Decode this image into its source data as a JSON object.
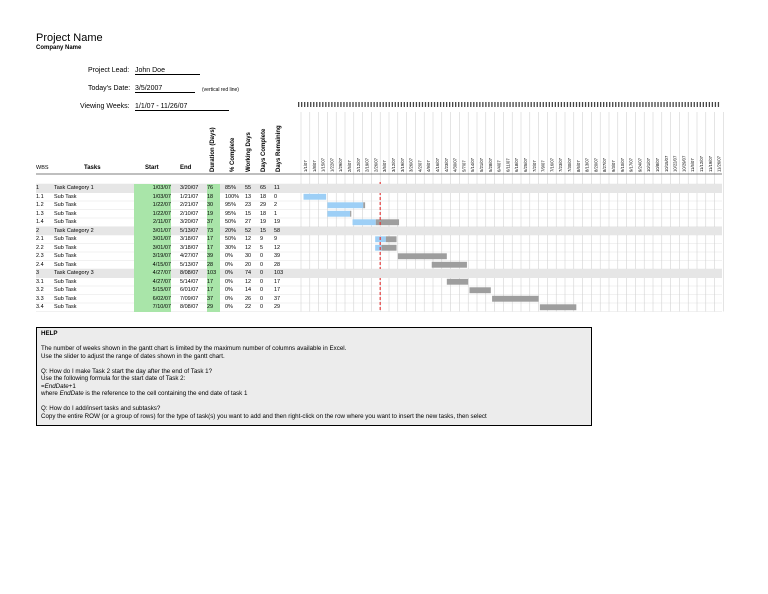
{
  "title": "Project Name",
  "company": "Company Name",
  "fields": {
    "lead_label": "Project Lead:",
    "lead_value": "John Doe",
    "today_label": "Today's Date:",
    "today_value": "3/5/2007",
    "today_note": "(vertical red line)",
    "weeks_label": "Viewing Weeks:",
    "weeks_value": "1/1/07 - 11/26/07"
  },
  "columns": {
    "wbs": "WBS",
    "tasks": "Tasks",
    "start": "Start",
    "end": "End",
    "duration": "Duration (Days)",
    "pct": "% Complete",
    "working": "Working Days",
    "days_complete": "Days Complete",
    "days_remaining": "Days Remaining"
  },
  "week_dates": [
    "1/1/07",
    "1/8/07",
    "1/15/07",
    "1/22/07",
    "1/29/07",
    "2/5/07",
    "2/12/07",
    "2/19/07",
    "2/26/07",
    "3/5/07",
    "3/12/07",
    "3/19/07",
    "3/26/07",
    "4/2/07",
    "4/9/07",
    "4/16/07",
    "4/23/07",
    "4/30/07",
    "5/7/07",
    "5/14/07",
    "5/21/07",
    "5/28/07",
    "6/4/07",
    "6/11/07",
    "6/18/07",
    "6/25/07",
    "7/2/07",
    "7/9/07",
    "7/16/07",
    "7/23/07",
    "7/30/07",
    "8/6/07",
    "8/13/07",
    "8/20/07",
    "8/27/07",
    "9/3/07",
    "9/10/07",
    "9/17/07",
    "9/24/07",
    "10/1/07",
    "10/8/07",
    "10/15/07",
    "10/22/07",
    "10/29/07",
    "11/5/07",
    "11/12/07",
    "11/19/07",
    "11/26/07"
  ],
  "rows": [
    {
      "wbs": "1",
      "task": "Task Category 1",
      "start": "1/03/07",
      "end": "3/20/07",
      "dur": "76",
      "pct": "85%",
      "wd": "55",
      "dc": "65",
      "dr": "11",
      "cat": true,
      "s": 2,
      "e": 78,
      "p": 0.85
    },
    {
      "wbs": "1.1",
      "task": "Sub Task",
      "start": "1/03/07",
      "end": "1/21/07",
      "dur": "18",
      "pct": "100%",
      "wd": "13",
      "dc": "18",
      "dr": "0",
      "cat": false,
      "s": 2,
      "e": 20,
      "p": 1.0
    },
    {
      "wbs": "1.2",
      "task": "Sub Task",
      "start": "1/22/07",
      "end": "2/21/07",
      "dur": "30",
      "pct": "95%",
      "wd": "23",
      "dc": "29",
      "dr": "2",
      "cat": false,
      "s": 21,
      "e": 51,
      "p": 0.95
    },
    {
      "wbs": "1.3",
      "task": "Sub Task",
      "start": "1/22/07",
      "end": "2/10/07",
      "dur": "19",
      "pct": "95%",
      "wd": "15",
      "dc": "18",
      "dr": "1",
      "cat": false,
      "s": 21,
      "e": 40,
      "p": 0.95
    },
    {
      "wbs": "1.4",
      "task": "Sub Task",
      "start": "2/11/07",
      "end": "3/20/07",
      "dur": "37",
      "pct": "50%",
      "wd": "27",
      "dc": "19",
      "dr": "19",
      "cat": false,
      "s": 41,
      "e": 78,
      "p": 0.5
    },
    {
      "wbs": "2",
      "task": "Task Category 2",
      "start": "3/01/07",
      "end": "5/13/07",
      "dur": "73",
      "pct": "20%",
      "wd": "52",
      "dc": "15",
      "dr": "58",
      "cat": true,
      "s": 59,
      "e": 132,
      "p": 0.2
    },
    {
      "wbs": "2.1",
      "task": "Sub Task",
      "start": "3/01/07",
      "end": "3/18/07",
      "dur": "17",
      "pct": "50%",
      "wd": "12",
      "dc": "9",
      "dr": "9",
      "cat": false,
      "s": 59,
      "e": 76,
      "p": 0.5
    },
    {
      "wbs": "2.2",
      "task": "Sub Task",
      "start": "3/01/07",
      "end": "3/18/07",
      "dur": "17",
      "pct": "30%",
      "wd": "12",
      "dc": "5",
      "dr": "12",
      "cat": false,
      "s": 59,
      "e": 76,
      "p": 0.3
    },
    {
      "wbs": "2.3",
      "task": "Sub Task",
      "start": "3/19/07",
      "end": "4/27/07",
      "dur": "39",
      "pct": "0%",
      "wd": "30",
      "dc": "0",
      "dr": "39",
      "cat": false,
      "s": 77,
      "e": 116,
      "p": 0
    },
    {
      "wbs": "2.4",
      "task": "Sub Task",
      "start": "4/15/07",
      "end": "5/13/07",
      "dur": "28",
      "pct": "0%",
      "wd": "20",
      "dc": "0",
      "dr": "28",
      "cat": false,
      "s": 104,
      "e": 132,
      "p": 0
    },
    {
      "wbs": "3",
      "task": "Task Category 3",
      "start": "4/27/07",
      "end": "8/08/07",
      "dur": "103",
      "pct": "0%",
      "wd": "74",
      "dc": "0",
      "dr": "103",
      "cat": true,
      "s": 116,
      "e": 219,
      "p": 0
    },
    {
      "wbs": "3.1",
      "task": "Sub Task",
      "start": "4/27/07",
      "end": "5/14/07",
      "dur": "17",
      "pct": "0%",
      "wd": "12",
      "dc": "0",
      "dr": "17",
      "cat": false,
      "s": 116,
      "e": 133,
      "p": 0
    },
    {
      "wbs": "3.2",
      "task": "Sub Task",
      "start": "5/15/07",
      "end": "6/01/07",
      "dur": "17",
      "pct": "0%",
      "wd": "14",
      "dc": "0",
      "dr": "17",
      "cat": false,
      "s": 134,
      "e": 151,
      "p": 0
    },
    {
      "wbs": "3.3",
      "task": "Sub Task",
      "start": "6/02/07",
      "end": "7/09/07",
      "dur": "37",
      "pct": "0%",
      "wd": "26",
      "dc": "0",
      "dr": "37",
      "cat": false,
      "s": 152,
      "e": 189,
      "p": 0
    },
    {
      "wbs": "3.4",
      "task": "Sub Task",
      "start": "7/10/07",
      "end": "8/08/07",
      "dur": "29",
      "pct": "0%",
      "wd": "22",
      "dc": "0",
      "dr": "29",
      "cat": false,
      "s": 190,
      "e": 219,
      "p": 0
    }
  ],
  "today_day": 63,
  "colors": {
    "done": "#6f9cee",
    "done_light": "#9dcff6",
    "remaining": "#7a7a7a",
    "remaining_light": "#9e9e9e",
    "today": "#e23b3b",
    "start_fill": "#a9e5a9",
    "cat_row": "#e6e6e6"
  },
  "help": {
    "title": "HELP",
    "lines": [
      "The number of weeks shown in the gantt chart is limited by the maximum number of columns available in Excel.",
      "Use the slider to adjust the range of dates shown in the gantt chart.",
      "",
      "Q: How do I make Task 2 start the day after the end of Task 1?",
      "Use the following formula for the start date of Task 2:",
      "=EndDate+1",
      "where EndDate is the reference to the cell containing the end date of task 1",
      "",
      "Q: How do I add/insert tasks and subtasks?",
      "Copy the entire ROW (or a group of rows) for the type of task(s) you want to add and then right-click on the row where you want to insert the new tasks, then select"
    ]
  }
}
